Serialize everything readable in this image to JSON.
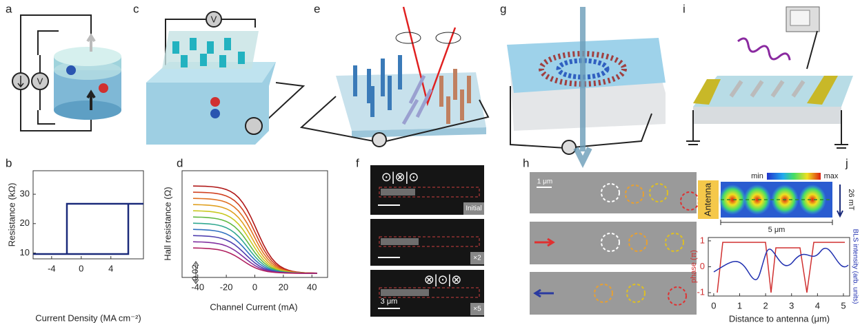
{
  "panels": {
    "a": {
      "letter": "a",
      "voltmeter": "V"
    },
    "b": {
      "letter": "b",
      "ylabel": "Resistance (kΩ)",
      "xlabel": "Current Density (MA cm⁻²)",
      "xlim": [
        -6.5,
        8.4
      ],
      "ylim": [
        8,
        38
      ],
      "xticks": [
        -4,
        0,
        4
      ],
      "yticks": [
        10,
        20,
        30
      ]
    },
    "c": {
      "letter": "c",
      "voltmeter": "V"
    },
    "d": {
      "letter": "d",
      "ylabel": "Hall resistance (Ω)",
      "xlabel": "Channel Current (mA)",
      "xlim": [
        -51,
        51
      ],
      "xticks": [
        -40,
        -20,
        0,
        20,
        40
      ],
      "scale_bar": "0.02"
    },
    "e": {
      "letter": "e"
    },
    "f": {
      "letter": "f",
      "frames": [
        "Initial",
        "×2",
        "×5"
      ],
      "scale_bar": "3 μm",
      "states": [
        "⊙|⊗|⊙",
        "⊗|⊙|⊗"
      ]
    },
    "g": {
      "letter": "g"
    },
    "h": {
      "letter": "h",
      "scale_bar": "1 μm"
    },
    "i": {
      "letter": "i"
    },
    "j": {
      "letter": "j",
      "colorbar": [
        "min",
        "max"
      ],
      "antenna": "Antenna",
      "field": "26 mT",
      "scale_bar": "5 μm",
      "ylabel_left": "phase (π)",
      "ylabel_right": "BLS intensity (arb. units)",
      "xlabel": "Distance to antenna (μm)",
      "xlim": [
        -0.21,
        5.24
      ],
      "xticks": [
        0,
        1,
        2,
        3,
        4,
        5
      ],
      "ylim_left": [
        -1.13,
        1.13
      ],
      "yticks_left": [
        1,
        0,
        -1
      ]
    }
  }
}
